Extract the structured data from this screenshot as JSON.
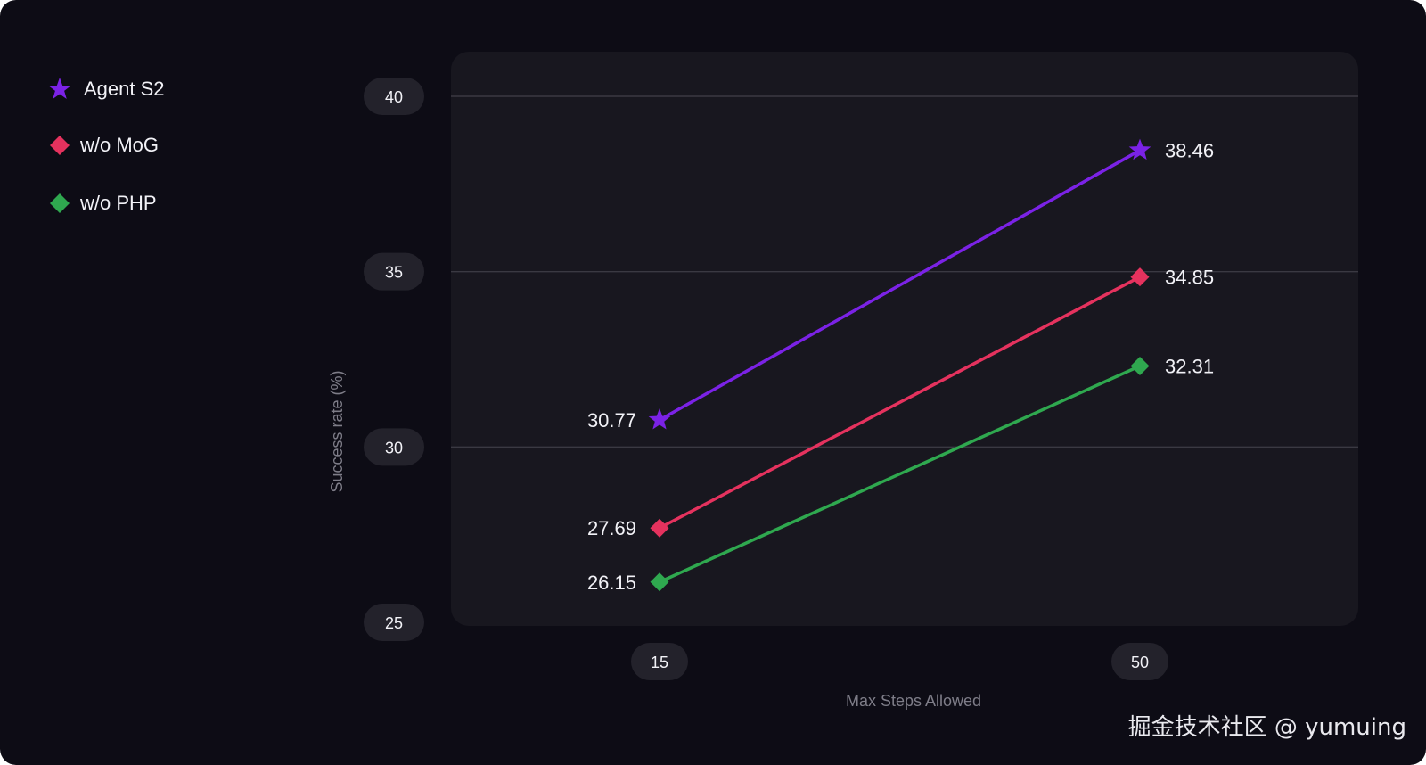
{
  "chart_data": {
    "type": "line",
    "xlabel": "Max Steps Allowed",
    "ylabel": "Success rate (%)",
    "categories": [
      "15",
      "50"
    ],
    "x": [
      15,
      50
    ],
    "ylim": [
      25,
      40
    ],
    "yticks": [
      "25",
      "30",
      "35",
      "40"
    ],
    "grid": true,
    "legend_position": "top-left",
    "series": [
      {
        "name": "Agent S2",
        "values": [
          30.77,
          38.46
        ],
        "labels": [
          "30.77",
          "38.46"
        ],
        "color": "#7b22e6",
        "marker": "star"
      },
      {
        "name": "w/o MoG",
        "values": [
          27.69,
          34.85
        ],
        "labels": [
          "27.69",
          "34.85"
        ],
        "color": "#e5325e",
        "marker": "diamond"
      },
      {
        "name": "w/o PHP",
        "values": [
          26.15,
          32.31
        ],
        "labels": [
          "26.15",
          "32.31"
        ],
        "color": "#2fa84f",
        "marker": "diamond"
      }
    ]
  },
  "colors": {
    "background": "#0d0c15",
    "plot_area": "#18171f",
    "grid": "#3a3942",
    "tick_pill": "#23222b",
    "text": "#f2f2f7",
    "axis_title": "#7e7d88"
  },
  "watermark": "掘金技术社区 @ yumuing"
}
